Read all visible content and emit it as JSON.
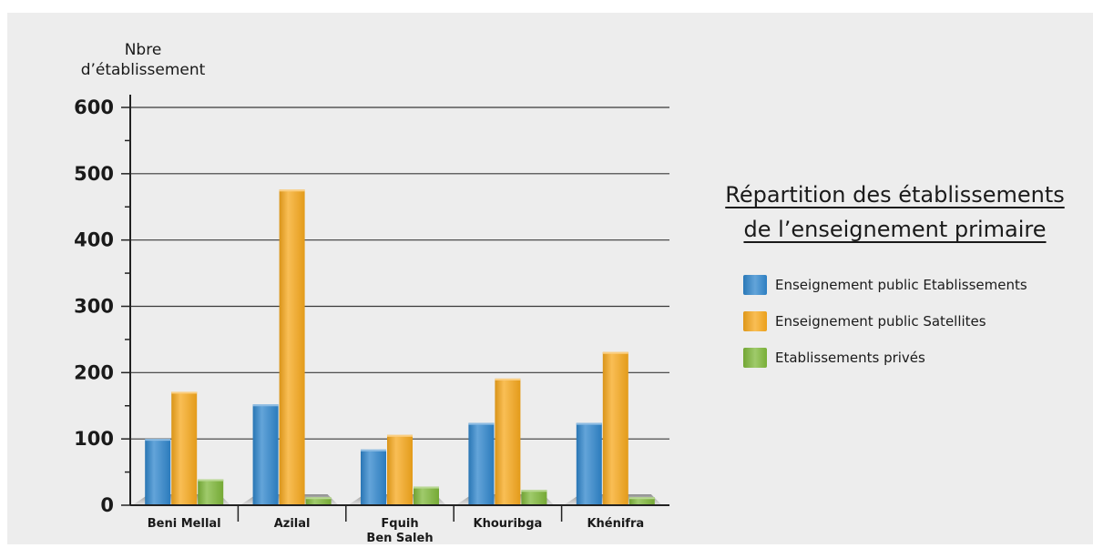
{
  "chart_data": {
    "type": "bar",
    "title": "Répartition des établissements de l’enseignement primaire",
    "title_lines": [
      "Répartition des établissements",
      "de l’enseignement primaire"
    ],
    "ylabel": "Nbre d’établissement",
    "ylabel_lines": [
      "Nbre",
      "d’établissement"
    ],
    "xlabel": "",
    "ylim": [
      0,
      600
    ],
    "yticks": [
      0,
      100,
      200,
      300,
      400,
      500,
      600
    ],
    "yticks_minor_step": 50,
    "grid": true,
    "legend_position": "right",
    "categories": [
      [
        "Beni Mellal"
      ],
      [
        "Azilal"
      ],
      [
        "Fquih",
        "Ben Saleh"
      ],
      [
        "Khouribga"
      ],
      [
        "Khénifra"
      ]
    ],
    "series": [
      {
        "name": "Enseignement public Etablissements",
        "color": "#2f86cc",
        "values": [
          100,
          152,
          84,
          124,
          124
        ]
      },
      {
        "name": "Enseignement public Satellites",
        "color": "#f7a81c",
        "values": [
          171,
          476,
          106,
          191,
          231
        ]
      },
      {
        "name": "Etablissements privés",
        "color": "#7fb83a",
        "values": [
          39,
          12,
          28,
          23,
          12
        ]
      }
    ]
  }
}
